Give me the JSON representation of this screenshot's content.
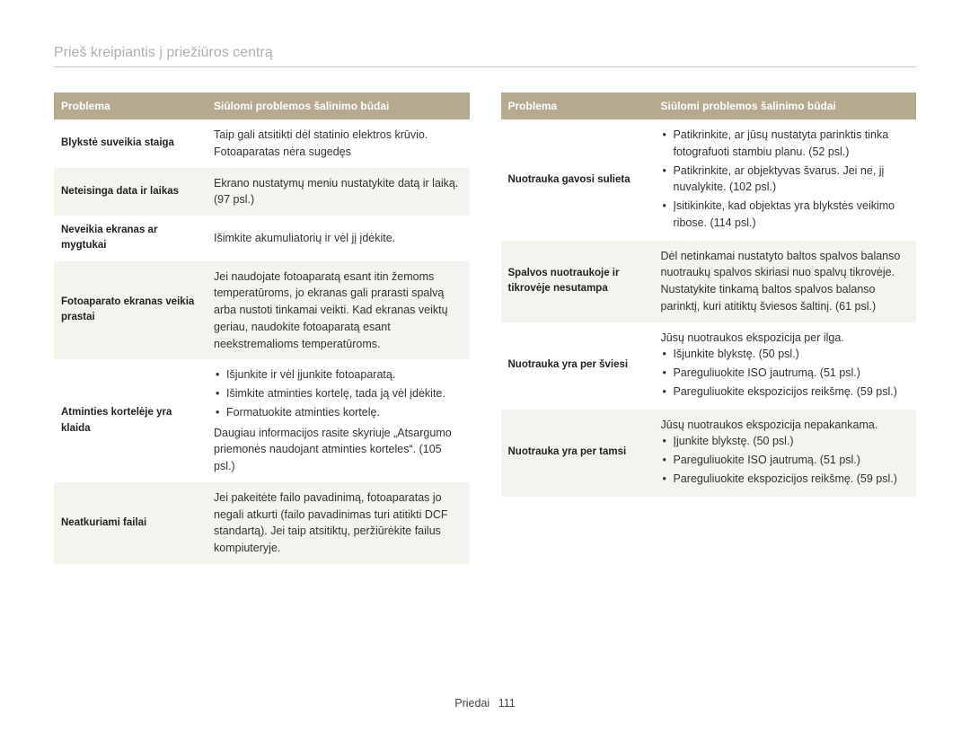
{
  "page_title": "Prieš kreipiantis į priežiūros centrą",
  "header_col1": "Problema",
  "header_col2": "Siūlomi problemos šalinimo būdai",
  "left_table": [
    {
      "problem": "Blykstė suveikia staiga",
      "body_type": "text",
      "text": "Taip gali atsitikti dėl statinio elektros krūvio. Fotoaparatas nėra sugedęs"
    },
    {
      "problem": "Neteisinga data ir laikas",
      "body_type": "text",
      "text": "Ekrano nustatymų meniu nustatykite datą ir laiką. (97 psl.)"
    },
    {
      "problem": "Neveikia ekranas ar mygtukai",
      "body_type": "text",
      "text": "Išimkite akumuliatorių ir vėl jį įdėkite."
    },
    {
      "problem": "Fotoaparato ekranas veikia prastai",
      "body_type": "text",
      "text": "Jei naudojate fotoaparatą esant itin žemoms temperatūroms, jo ekranas gali prarasti spalvą arba nustoti tinkamai veikti. Kad ekranas veiktų geriau, naudokite fotoaparatą esant neekstremalioms temperatūroms."
    },
    {
      "problem": "Atminties kortelėje yra klaida",
      "body_type": "list_extra",
      "items": [
        "Išjunkite ir vėl įjunkite fotoaparatą.",
        "Išimkite atminties kortelę, tada ją vėl įdėkite.",
        "Formatuokite atminties kortelę."
      ],
      "extra": "Daugiau informacijos rasite skyriuje „Atsargumo priemonės naudojant atminties korteles“. (105 psl.)"
    },
    {
      "problem": "Neatkuriami failai",
      "body_type": "text",
      "text": "Jei pakeitėte failo pavadinimą, fotoaparatas jo negali atkurti (failo pavadinimas turi atitikti DCF standartą). Jei taip atsitiktų, peržiūrėkite failus kompiuteryje."
    }
  ],
  "right_table": [
    {
      "problem": "Nuotrauka gavosi sulieta",
      "body_type": "list",
      "items": [
        "Patikrinkite, ar jūsų nustatyta parinktis tinka fotografuoti stambiu planu. (52 psl.)",
        "Patikrinkite, ar objektyvas švarus. Jei ne, jį nuvalykite. (102 psl.)",
        "Įsitikinkite, kad objektas yra blykstės veikimo ribose. (114 psl.)"
      ]
    },
    {
      "problem": "Spalvos nuotraukoje ir tikrovėje nesutampa",
      "body_type": "text",
      "text": "Dėl netinkamai nustatyto baltos spalvos balanso nuotraukų spalvos skiriasi nuo spalvų tikrovėje. Nustatykite tinkamą baltos spalvos balanso parinktį, kuri atitiktų šviesos šaltinį. (61 psl.)"
    },
    {
      "problem": "Nuotrauka yra per šviesi",
      "body_type": "pre_list",
      "pre": "Jūsų nuotraukos ekspozicija per ilga.",
      "items": [
        "Išjunkite blykstę. (50 psl.)",
        "Pareguliuokite ISO jautrumą. (51 psl.)",
        "Pareguliuokite ekspozicijos reikšmę. (59 psl.)"
      ]
    },
    {
      "problem": "Nuotrauka yra per tamsi",
      "body_type": "pre_list",
      "pre": "Jūsų nuotraukos ekspozicija nepakankama.",
      "items": [
        "Įjunkite blykstę. (50 psl.)",
        "Pareguliuokite ISO jautrumą. (51 psl.)",
        "Pareguliuokite ekspozicijos reikšmę. (59 psl.)"
      ]
    }
  ],
  "footer_label": "Priedai",
  "footer_page": "111",
  "colors": {
    "header_bg": "#b5a98f",
    "header_fg": "#ffffff",
    "row_alt_bg": "#f5f3ee",
    "title_fg": "#b0b0b0",
    "rule": "#c5c5c5"
  }
}
